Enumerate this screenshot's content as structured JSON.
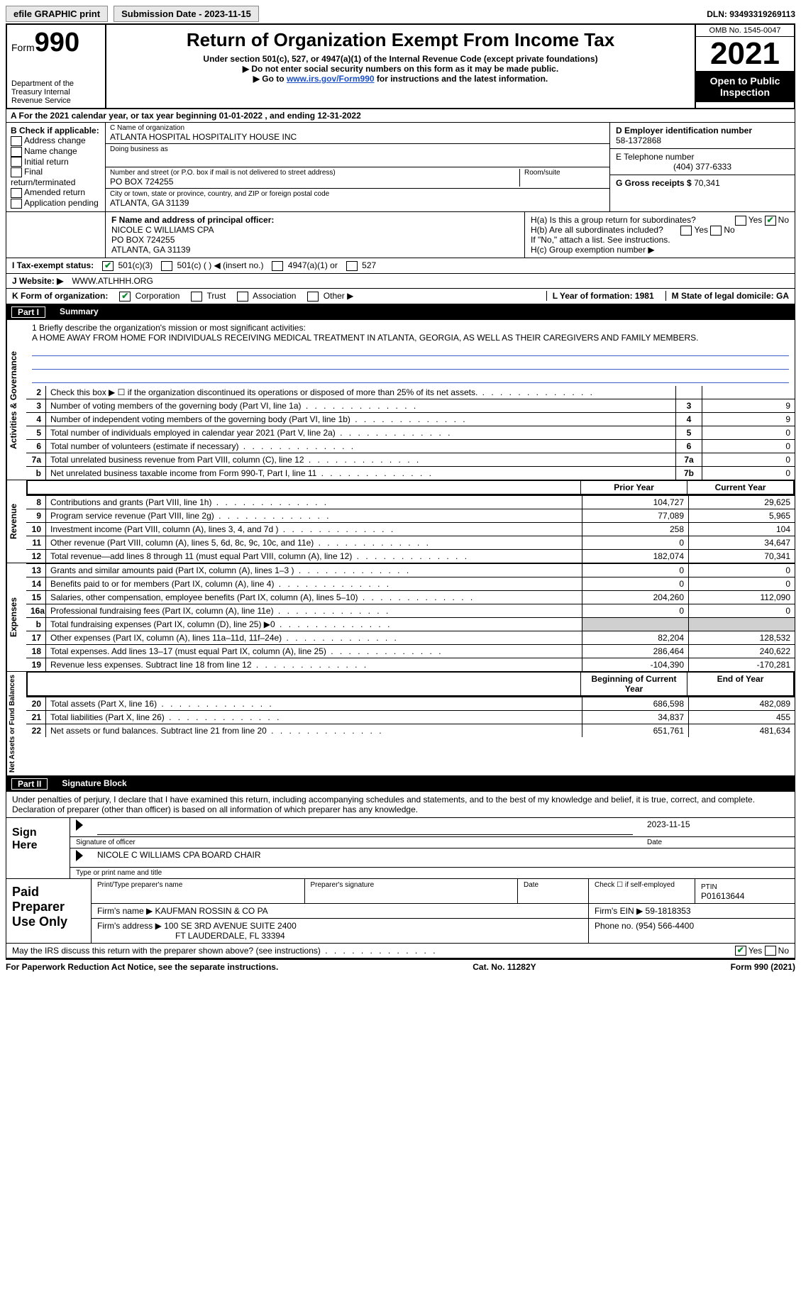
{
  "topbar": {
    "efile": "efile GRAPHIC print",
    "submission": "Submission Date - 2023-11-15",
    "dln": "DLN: 93493319269113"
  },
  "header": {
    "form_label": "Form",
    "form_num": "990",
    "dept": "Department of the Treasury Internal Revenue Service",
    "title": "Return of Organization Exempt From Income Tax",
    "sub1": "Under section 501(c), 527, or 4947(a)(1) of the Internal Revenue Code (except private foundations)",
    "sub2": "▶ Do not enter social security numbers on this form as it may be made public.",
    "sub3_pre": "▶ Go to ",
    "sub3_link": "www.irs.gov/Form990",
    "sub3_post": " for instructions and the latest information.",
    "omb": "OMB No. 1545-0047",
    "year": "2021",
    "inspect": "Open to Public Inspection"
  },
  "row_a": "A For the 2021 calendar year, or tax year beginning 01-01-2022   , and ending 12-31-2022",
  "col_b": {
    "title": "B Check if applicable:",
    "items": [
      "Address change",
      "Name change",
      "Initial return",
      "Final return/terminated",
      "Amended return",
      "Application pending"
    ]
  },
  "col_c": {
    "name_label": "C Name of organization",
    "name": "ATLANTA HOSPITAL HOSPITALITY HOUSE INC",
    "dba": "Doing business as",
    "addr_label": "Number and street (or P.O. box if mail is not delivered to street address)",
    "room": "Room/suite",
    "addr": "PO BOX 724255",
    "city_label": "City or town, state or province, country, and ZIP or foreign postal code",
    "city": "ATLANTA, GA  31139"
  },
  "col_d": {
    "ein_label": "D Employer identification number",
    "ein": "58-1372868",
    "tel_label": "E Telephone number",
    "tel": "(404) 377-6333",
    "gross_label": "G Gross receipts $",
    "gross": "70,341"
  },
  "row_f": {
    "label": "F  Name and address of principal officer:",
    "name": "NICOLE C WILLIAMS CPA",
    "addr1": "PO BOX 724255",
    "addr2": "ATLANTA, GA  31139"
  },
  "row_h": {
    "ha": "H(a)  Is this a group return for subordinates?",
    "hb": "H(b)  Are all subordinates included?",
    "hb_note": "If \"No,\" attach a list. See instructions.",
    "hc": "H(c)  Group exemption number ▶",
    "yes": "Yes",
    "no": "No"
  },
  "row_i": {
    "label": "I   Tax-exempt status:",
    "opts": [
      "501(c)(3)",
      "501(c) (  ) ◀ (insert no.)",
      "4947(a)(1) or",
      "527"
    ]
  },
  "row_j": {
    "label": "J   Website: ▶",
    "val": "WWW.ATLHHH.ORG"
  },
  "row_k": {
    "label": "K Form of organization:",
    "opts": [
      "Corporation",
      "Trust",
      "Association",
      "Other ▶"
    ],
    "l": "L Year of formation: 1981",
    "m": "M State of legal domicile: GA"
  },
  "part1": {
    "num": "Part I",
    "title": "Summary"
  },
  "mission": {
    "label": "1   Briefly describe the organization's mission or most significant activities:",
    "text": "A HOME AWAY FROM HOME FOR INDIVIDUALS RECEIVING MEDICAL TREATMENT IN ATLANTA, GEORGIA, AS WELL AS THEIR CAREGIVERS AND FAMILY MEMBERS."
  },
  "vlabels": {
    "gov": "Activities & Governance",
    "rev": "Revenue",
    "exp": "Expenses",
    "net": "Net Assets or Fund Balances"
  },
  "gov_rows": [
    {
      "n": "2",
      "t": "Check this box ▶ ☐ if the organization discontinued its operations or disposed of more than 25% of its net assets.",
      "box": "",
      "v": ""
    },
    {
      "n": "3",
      "t": "Number of voting members of the governing body (Part VI, line 1a)",
      "box": "3",
      "v": "9"
    },
    {
      "n": "4",
      "t": "Number of independent voting members of the governing body (Part VI, line 1b)",
      "box": "4",
      "v": "9"
    },
    {
      "n": "5",
      "t": "Total number of individuals employed in calendar year 2021 (Part V, line 2a)",
      "box": "5",
      "v": "0"
    },
    {
      "n": "6",
      "t": "Total number of volunteers (estimate if necessary)",
      "box": "6",
      "v": "0"
    },
    {
      "n": "7a",
      "t": "Total unrelated business revenue from Part VIII, column (C), line 12",
      "box": "7a",
      "v": "0"
    },
    {
      "n": "b",
      "t": "Net unrelated business taxable income from Form 990-T, Part I, line 11",
      "box": "7b",
      "v": "0"
    }
  ],
  "col_hdrs": {
    "prior": "Prior Year",
    "current": "Current Year",
    "begin": "Beginning of Current Year",
    "end": "End of Year"
  },
  "rev_rows": [
    {
      "n": "8",
      "t": "Contributions and grants (Part VIII, line 1h)",
      "p": "104,727",
      "c": "29,625"
    },
    {
      "n": "9",
      "t": "Program service revenue (Part VIII, line 2g)",
      "p": "77,089",
      "c": "5,965"
    },
    {
      "n": "10",
      "t": "Investment income (Part VIII, column (A), lines 3, 4, and 7d )",
      "p": "258",
      "c": "104"
    },
    {
      "n": "11",
      "t": "Other revenue (Part VIII, column (A), lines 5, 6d, 8c, 9c, 10c, and 11e)",
      "p": "0",
      "c": "34,647"
    },
    {
      "n": "12",
      "t": "Total revenue—add lines 8 through 11 (must equal Part VIII, column (A), line 12)",
      "p": "182,074",
      "c": "70,341"
    }
  ],
  "exp_rows": [
    {
      "n": "13",
      "t": "Grants and similar amounts paid (Part IX, column (A), lines 1–3 )",
      "p": "0",
      "c": "0"
    },
    {
      "n": "14",
      "t": "Benefits paid to or for members (Part IX, column (A), line 4)",
      "p": "0",
      "c": "0"
    },
    {
      "n": "15",
      "t": "Salaries, other compensation, employee benefits (Part IX, column (A), lines 5–10)",
      "p": "204,260",
      "c": "112,090"
    },
    {
      "n": "16a",
      "t": "Professional fundraising fees (Part IX, column (A), line 11e)",
      "p": "0",
      "c": "0"
    },
    {
      "n": "b",
      "t": "Total fundraising expenses (Part IX, column (D), line 25) ▶0",
      "p": "",
      "c": "",
      "shade": true
    },
    {
      "n": "17",
      "t": "Other expenses (Part IX, column (A), lines 11a–11d, 11f–24e)",
      "p": "82,204",
      "c": "128,532"
    },
    {
      "n": "18",
      "t": "Total expenses. Add lines 13–17 (must equal Part IX, column (A), line 25)",
      "p": "286,464",
      "c": "240,622"
    },
    {
      "n": "19",
      "t": "Revenue less expenses. Subtract line 18 from line 12",
      "p": "-104,390",
      "c": "-170,281"
    }
  ],
  "net_rows": [
    {
      "n": "20",
      "t": "Total assets (Part X, line 16)",
      "p": "686,598",
      "c": "482,089"
    },
    {
      "n": "21",
      "t": "Total liabilities (Part X, line 26)",
      "p": "34,837",
      "c": "455"
    },
    {
      "n": "22",
      "t": "Net assets or fund balances. Subtract line 21 from line 20",
      "p": "651,761",
      "c": "481,634"
    }
  ],
  "part2": {
    "num": "Part II",
    "title": "Signature Block"
  },
  "sig": {
    "decl": "Under penalties of perjury, I declare that I have examined this return, including accompanying schedules and statements, and to the best of my knowledge and belief, it is true, correct, and complete. Declaration of preparer (other than officer) is based on all information of which preparer has any knowledge.",
    "here": "Sign Here",
    "sig_officer": "Signature of officer",
    "date": "2023-11-15",
    "date_lbl": "Date",
    "name": "NICOLE C WILLIAMS CPA  BOARD CHAIR",
    "name_lbl": "Type or print name and title"
  },
  "prep": {
    "title": "Paid Preparer Use Only",
    "h1": "Print/Type preparer's name",
    "h2": "Preparer's signature",
    "h3": "Date",
    "h4": "Check ☐ if self-employed",
    "h5_lbl": "PTIN",
    "h5": "P01613644",
    "firm_lbl": "Firm's name    ▶",
    "firm": "KAUFMAN ROSSIN & CO PA",
    "ein_lbl": "Firm's EIN ▶",
    "ein": "59-1818353",
    "addr_lbl": "Firm's address ▶",
    "addr1": "100 SE 3RD AVENUE SUITE 2400",
    "addr2": "FT LAUDERDALE, FL  33394",
    "phone_lbl": "Phone no.",
    "phone": "(954) 566-4400"
  },
  "may": "May the IRS discuss this return with the preparer shown above? (see instructions)",
  "footer": {
    "l": "For Paperwork Reduction Act Notice, see the separate instructions.",
    "m": "Cat. No. 11282Y",
    "r": "Form 990 (2021)"
  }
}
